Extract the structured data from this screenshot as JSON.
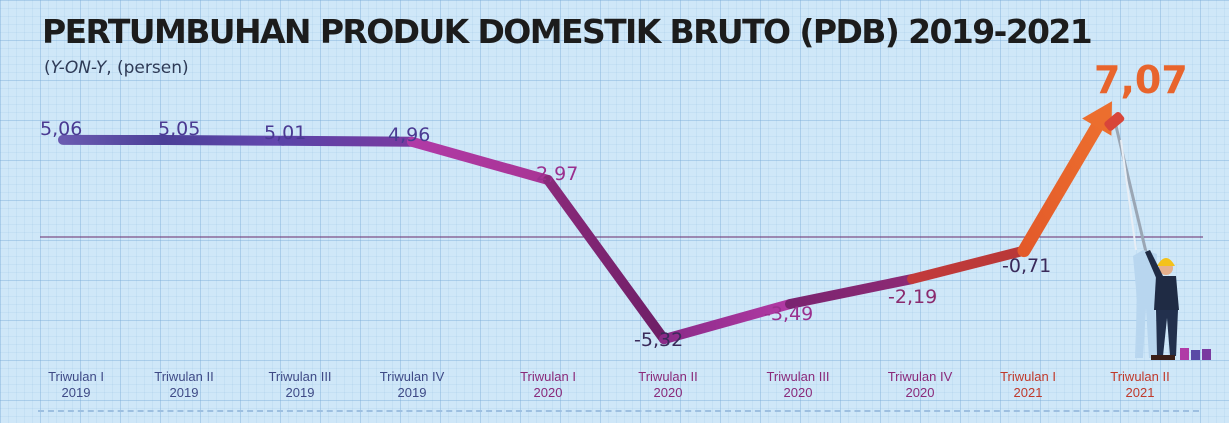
{
  "header": {
    "title": "PERTUMBUHAN PRODUK DOMESTIK BRUTO (PDB) 2019-2021",
    "subtitle_unit": "Y-ON-Y",
    "subtitle_rest": ", (persen)"
  },
  "colors": {
    "purple_2019": "#5a4aa6",
    "magenta_2020": "#8e2a84",
    "red_2021": "#c23a3a",
    "orange_highlight": "#e8642c",
    "zero_line": "#6a2a6a"
  },
  "chart_data": {
    "type": "line",
    "title": "PERTUMBUHAN PRODUK DOMESTIK BRUTO (PDB) 2019-2021",
    "ylabel": "",
    "xlabel": "",
    "ylim": [
      -6.5,
      7.5
    ],
    "grid": true,
    "categories": [
      [
        "Triwulan I",
        "2019"
      ],
      [
        "Triwulan II",
        "2019"
      ],
      [
        "Triwulan III",
        "2019"
      ],
      [
        "Triwulan IV",
        "2019"
      ],
      [
        "Triwulan I",
        "2020"
      ],
      [
        "Triwulan II",
        "2020"
      ],
      [
        "Triwulan III",
        "2020"
      ],
      [
        "Triwulan IV",
        "2020"
      ],
      [
        "Triwulan I",
        "2021"
      ],
      [
        "Triwulan II",
        "2021"
      ]
    ],
    "values": [
      5.06,
      5.05,
      5.01,
      4.96,
      2.97,
      -5.32,
      -3.49,
      -2.19,
      -0.71,
      7.07
    ],
    "value_labels": [
      "5,06",
      "5,05",
      "5,01",
      "4,96",
      "2,97",
      "-5,32",
      "-3,49",
      "-2,19",
      "-0,71",
      "7,07"
    ]
  },
  "illustration": {
    "figure": "worker-with-paint-roller",
    "icons": [
      "hard-hat-icon",
      "paint-roller-icon",
      "paint-bucket-icon"
    ]
  }
}
